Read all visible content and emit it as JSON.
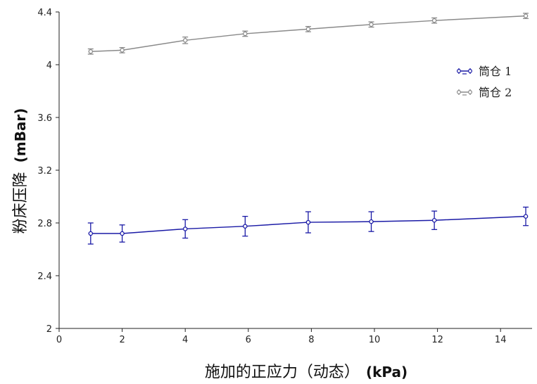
{
  "chart_data": {
    "type": "line",
    "xlabel": "施加的正应力（动态）",
    "xlabel_unit": "(kPa)",
    "ylabel": "粉床压降",
    "ylabel_unit": "(mBar)",
    "xlim": [
      0,
      15
    ],
    "ylim": [
      2,
      4.4
    ],
    "x_ticks": [
      "0",
      "2",
      "4",
      "6",
      "8",
      "10",
      "12",
      "14"
    ],
    "y_ticks": [
      "2",
      "2.4",
      "2.8",
      "3.2",
      "3.6",
      "4",
      "4.4"
    ],
    "grid": false,
    "legend_position": "top-right",
    "series": [
      {
        "name": "筒仓 1",
        "color": "#1a1aa6",
        "x": [
          1.0,
          2.0,
          4.0,
          5.9,
          7.9,
          9.9,
          11.9,
          14.8
        ],
        "y": [
          2.72,
          2.72,
          2.755,
          2.775,
          2.805,
          2.81,
          2.82,
          2.85
        ],
        "err": [
          0.08,
          0.065,
          0.07,
          0.075,
          0.08,
          0.075,
          0.07,
          0.07
        ]
      },
      {
        "name": "筒仓 2",
        "color": "#8a8a8a",
        "x": [
          1.0,
          2.0,
          4.0,
          5.9,
          7.9,
          9.9,
          11.9,
          14.8
        ],
        "y": [
          4.1,
          4.11,
          4.185,
          4.235,
          4.27,
          4.305,
          4.335,
          4.37
        ],
        "err": [
          0.02,
          0.02,
          0.025,
          0.02,
          0.02,
          0.02,
          0.02,
          0.02
        ]
      }
    ]
  }
}
